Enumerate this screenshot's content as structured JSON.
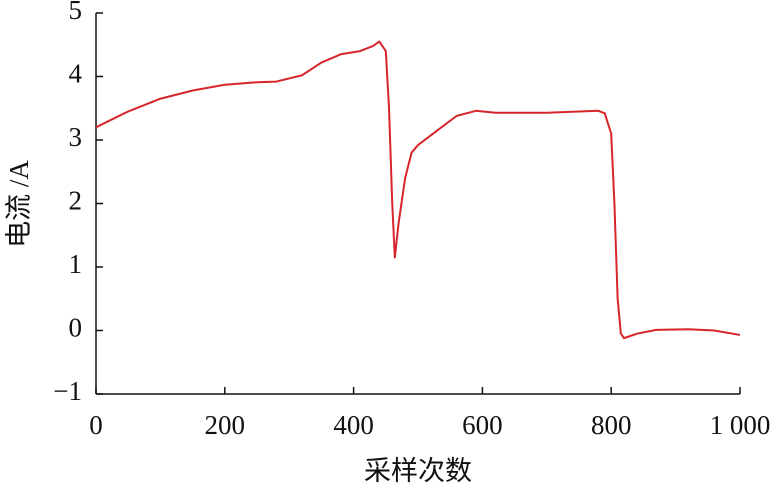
{
  "chart_data": {
    "type": "line",
    "x_label": "采样次数",
    "y_label": "电流 /A",
    "x": [
      0,
      50,
      100,
      150,
      200,
      250,
      280,
      320,
      350,
      380,
      410,
      430,
      440,
      450,
      455,
      460,
      464,
      470,
      480,
      490,
      500,
      530,
      560,
      590,
      620,
      700,
      780,
      790,
      800,
      805,
      810,
      815,
      820,
      840,
      870,
      920,
      960,
      1000
    ],
    "series": [
      {
        "color": "#d7262b",
        "values": [
          3.2,
          3.45,
          3.65,
          3.78,
          3.87,
          3.91,
          3.92,
          4.02,
          4.22,
          4.35,
          4.4,
          4.48,
          4.55,
          4.4,
          3.5,
          2.0,
          1.15,
          1.7,
          2.4,
          2.8,
          2.92,
          3.15,
          3.38,
          3.46,
          3.43,
          3.43,
          3.46,
          3.42,
          3.1,
          2.0,
          0.5,
          -0.05,
          -0.12,
          -0.05,
          0.01,
          0.02,
          0.0,
          -0.07
        ]
      }
    ],
    "xlim": [
      0,
      1000
    ],
    "ylim": [
      -1,
      5
    ],
    "xticks": [
      0,
      200,
      400,
      600,
      800,
      {
        "value": 1000,
        "label": "1 000"
      }
    ],
    "yticks": [
      {
        "value": -1,
        "label": "−1"
      },
      0,
      1,
      2,
      3,
      4,
      5
    ],
    "grid": false
  }
}
